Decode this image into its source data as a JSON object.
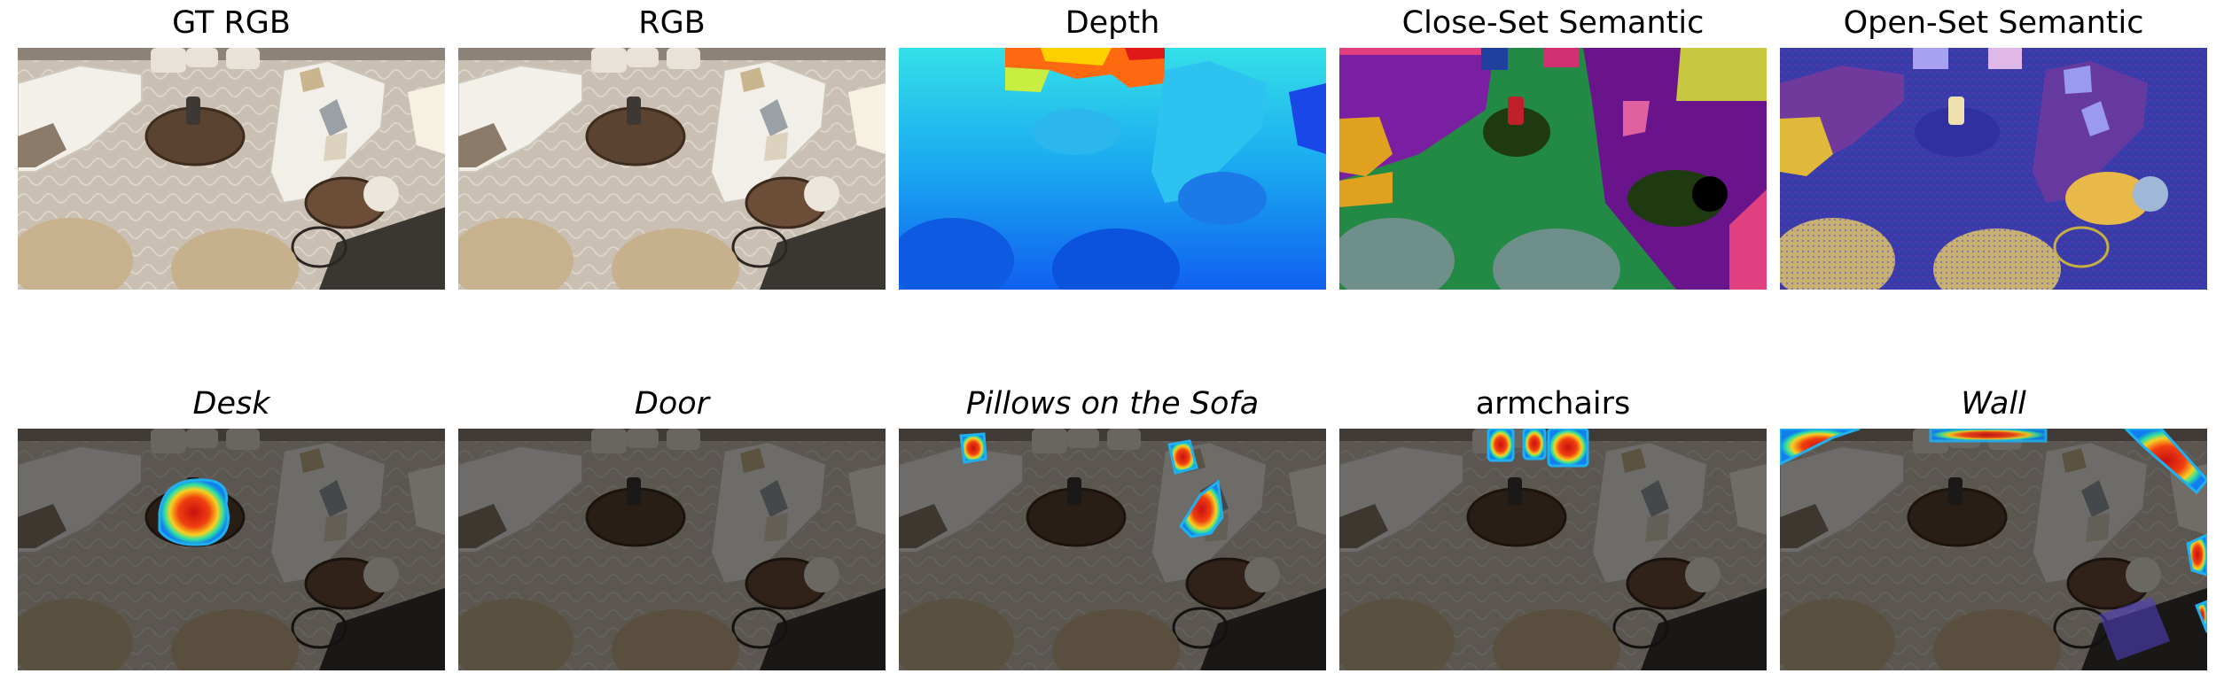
{
  "top_row": [
    {
      "title": "GT RGB",
      "kind": "rgb"
    },
    {
      "title": "RGB",
      "kind": "rgb"
    },
    {
      "title": "Depth",
      "kind": "depth"
    },
    {
      "title": "Close-Set Semantic",
      "kind": "closeset"
    },
    {
      "title": "Open-Set Semantic",
      "kind": "openset"
    }
  ],
  "bottom_row": [
    {
      "title": "Desk",
      "italic": true,
      "target": "desk"
    },
    {
      "title": "Door",
      "italic": true,
      "target": "none"
    },
    {
      "title": "Pillows on the Sofa",
      "italic": true,
      "target": "pillows"
    },
    {
      "title": "armchairs",
      "italic": false,
      "target": "armchairs"
    },
    {
      "title": "Wall",
      "italic": true,
      "target": "wall"
    }
  ]
}
